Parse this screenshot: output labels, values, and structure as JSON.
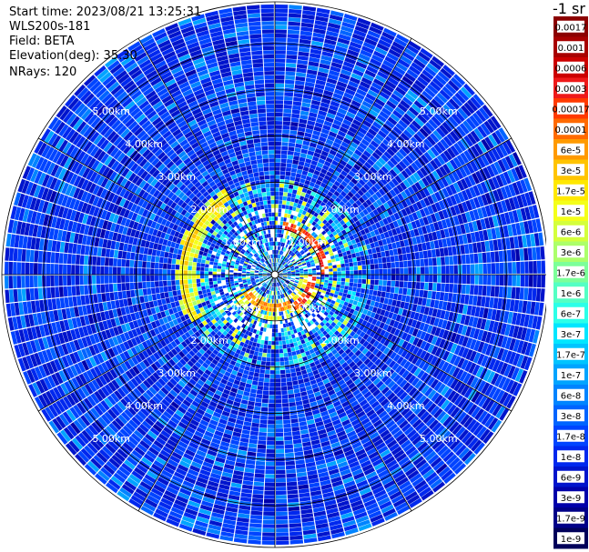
{
  "header": {
    "start_time": "Start time: 2023/08/21 13:25:31",
    "instrument": "WLS200s-181",
    "field": "Field: BETA",
    "elevation": "Elevation(deg): 35.30",
    "nrays": "NRays: 120"
  },
  "chart_data": {
    "type": "polar-ppi",
    "field": "BETA",
    "n_rays": 120,
    "elevation_deg": 35.3,
    "max_range_km": 5.9,
    "range_rings_km": [
      1,
      2,
      3,
      4,
      5
    ],
    "range_ring_labels": [
      "1.00km",
      "2.00km",
      "3.00km",
      "4.00km",
      "5.00km"
    ],
    "azimuth_lines_deg": [
      0,
      30,
      60,
      90,
      120,
      150,
      180,
      210,
      240,
      270,
      300,
      330
    ],
    "bright_band": [
      {
        "az_from_deg": 10,
        "az_to_deg": 90,
        "range_km": 1.05,
        "level": "0.0003"
      },
      {
        "az_from_deg": 90,
        "az_to_deg": 150,
        "range_km": 0.75,
        "level": "0.0003"
      },
      {
        "az_from_deg": 150,
        "az_to_deg": 240,
        "range_km": 0.7,
        "level": "0.0001"
      },
      {
        "az_from_deg": 240,
        "az_to_deg": 330,
        "range_km": 1.9,
        "level": "3e-5"
      }
    ],
    "colorbar": {
      "unit": "-1 sr",
      "labels": [
        "0.0017",
        "0.001",
        "0.0006",
        "0.0003",
        "0.00017",
        "0.0001",
        "6e-5",
        "3e-5",
        "1.7e-5",
        "1e-5",
        "6e-6",
        "3e-6",
        "1.7e-6",
        "1e-6",
        "6e-7",
        "3e-7",
        "1.7e-7",
        "1e-7",
        "6e-8",
        "3e-8",
        "1.7e-8",
        "1e-8",
        "6e-9",
        "3e-9",
        "1.7e-9",
        "1e-9"
      ],
      "colors": [
        "#8b0000",
        "#a80000",
        "#cc0000",
        "#ee1a1a",
        "#ff3a00",
        "#ff6a00",
        "#ff9a00",
        "#ffc400",
        "#ffe800",
        "#f4ff1a",
        "#d4ff3c",
        "#acff6a",
        "#7cff99",
        "#54ffc4",
        "#2cffe8",
        "#00e6ff",
        "#00c4ff",
        "#00a4ff",
        "#0084ff",
        "#0064ff",
        "#0044ff",
        "#0028ee",
        "#0014cc",
        "#0000aa",
        "#000088",
        "#00005a"
      ]
    }
  }
}
